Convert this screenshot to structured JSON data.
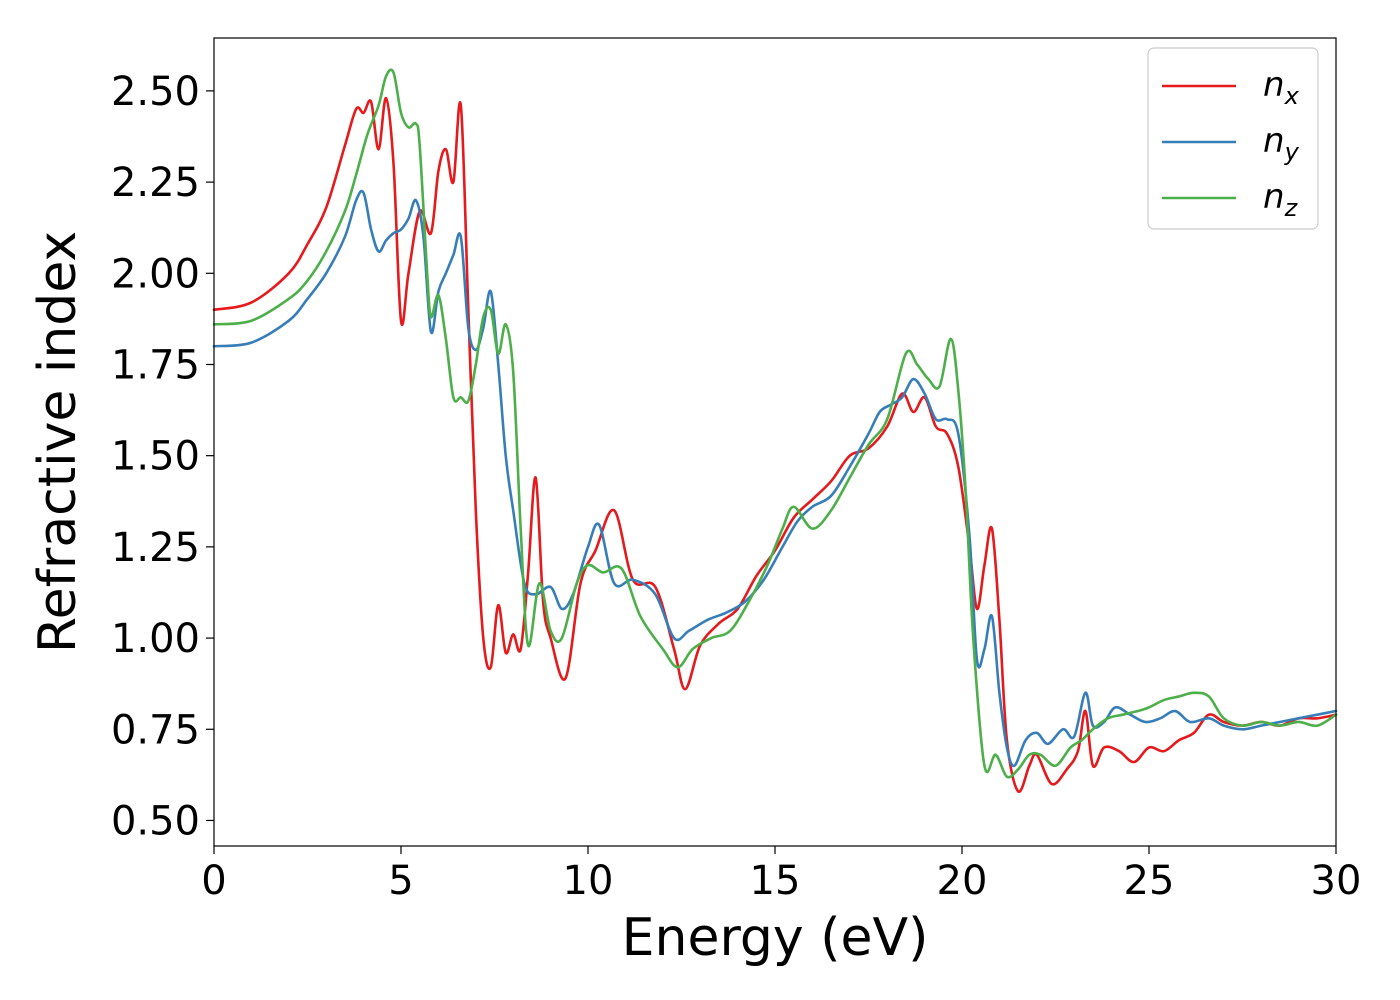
{
  "chart_data": {
    "type": "line",
    "xlabel": "Energy (eV)",
    "ylabel": "Refractive index",
    "xlim": [
      0,
      30
    ],
    "ylim": [
      0.43,
      2.645
    ],
    "xticks": [
      0,
      5,
      10,
      15,
      20,
      25,
      30
    ],
    "xtick_labels": [
      "0",
      "5",
      "10",
      "15",
      "20",
      "25",
      "30"
    ],
    "yticks": [
      0.5,
      0.75,
      1.0,
      1.25,
      1.5,
      1.75,
      2.0,
      2.25,
      2.5
    ],
    "ytick_labels": [
      "0.50",
      "0.75",
      "1.00",
      "1.25",
      "1.50",
      "1.75",
      "2.00",
      "2.25",
      "2.50"
    ],
    "grid": false,
    "legend_position": "top-right",
    "series": [
      {
        "name": "n_x",
        "label_main": "n",
        "label_sub": "x",
        "color": "#e41a1c",
        "x": [
          0,
          1,
          2,
          2.5,
          3,
          3.5,
          3.8,
          4.0,
          4.2,
          4.4,
          4.6,
          4.8,
          5.0,
          5.2,
          5.5,
          5.8,
          6.0,
          6.2,
          6.4,
          6.6,
          6.8,
          7.0,
          7.2,
          7.4,
          7.6,
          7.8,
          8.0,
          8.2,
          8.4,
          8.6,
          8.8,
          9.0,
          9.4,
          9.8,
          10.2,
          10.7,
          11.2,
          11.8,
          12.3,
          12.6,
          13.0,
          13.5,
          14.0,
          14.5,
          15.0,
          15.5,
          16.0,
          16.5,
          17.0,
          17.5,
          18.0,
          18.4,
          18.7,
          19.0,
          19.3,
          19.6,
          19.9,
          20.2,
          20.4,
          20.6,
          20.8,
          21.0,
          21.2,
          21.5,
          21.8,
          22.0,
          22.4,
          22.8,
          23.1,
          23.3,
          23.5,
          23.8,
          24.2,
          24.6,
          25.0,
          25.4,
          25.8,
          26.2,
          26.6,
          27.0,
          27.5,
          28.0,
          28.5,
          29.0,
          29.5,
          30.0
        ],
        "values": [
          1.9,
          1.92,
          2.0,
          2.08,
          2.18,
          2.35,
          2.45,
          2.44,
          2.47,
          2.34,
          2.48,
          2.3,
          1.87,
          2.0,
          2.17,
          2.11,
          2.28,
          2.34,
          2.25,
          2.46,
          1.9,
          1.35,
          1.0,
          0.92,
          1.09,
          0.96,
          1.01,
          0.97,
          1.18,
          1.44,
          1.1,
          1.0,
          0.89,
          1.15,
          1.24,
          1.35,
          1.16,
          1.14,
          0.97,
          0.86,
          0.98,
          1.04,
          1.08,
          1.17,
          1.24,
          1.33,
          1.38,
          1.43,
          1.5,
          1.52,
          1.58,
          1.67,
          1.62,
          1.66,
          1.58,
          1.56,
          1.47,
          1.25,
          1.08,
          1.2,
          1.3,
          1.05,
          0.72,
          0.58,
          0.65,
          0.68,
          0.6,
          0.64,
          0.69,
          0.8,
          0.65,
          0.7,
          0.69,
          0.66,
          0.7,
          0.69,
          0.72,
          0.74,
          0.79,
          0.77,
          0.76,
          0.77,
          0.76,
          0.78,
          0.78,
          0.79
        ]
      },
      {
        "name": "n_y",
        "label_main": "n",
        "label_sub": "y",
        "color": "#377eb8",
        "x": [
          0,
          1,
          2,
          2.5,
          3,
          3.5,
          3.8,
          4.0,
          4.2,
          4.4,
          4.6,
          4.8,
          5.0,
          5.2,
          5.4,
          5.6,
          5.8,
          6.0,
          6.2,
          6.4,
          6.6,
          6.8,
          7.0,
          7.2,
          7.4,
          7.6,
          7.8,
          8.0,
          8.3,
          8.6,
          9.0,
          9.3,
          9.6,
          10.0,
          10.3,
          10.7,
          11.2,
          11.8,
          12.3,
          12.7,
          13.2,
          13.7,
          14.2,
          14.7,
          15.2,
          15.6,
          16.0,
          16.5,
          17.0,
          17.5,
          17.8,
          18.1,
          18.4,
          18.7,
          19.0,
          19.3,
          19.6,
          19.9,
          20.2,
          20.4,
          20.6,
          20.8,
          21.0,
          21.2,
          21.4,
          21.7,
          22.0,
          22.3,
          22.7,
          23.0,
          23.3,
          23.5,
          23.8,
          24.1,
          24.5,
          24.9,
          25.3,
          25.7,
          26.1,
          26.6,
          27.0,
          27.5,
          28.0,
          28.5,
          29.0,
          29.5,
          30.0
        ],
        "values": [
          1.8,
          1.81,
          1.87,
          1.93,
          2.0,
          2.1,
          2.2,
          2.22,
          2.12,
          2.06,
          2.09,
          2.11,
          2.12,
          2.15,
          2.2,
          2.1,
          1.84,
          1.95,
          2.0,
          2.05,
          2.1,
          1.85,
          1.79,
          1.85,
          1.95,
          1.75,
          1.5,
          1.35,
          1.15,
          1.12,
          1.14,
          1.08,
          1.12,
          1.25,
          1.31,
          1.15,
          1.16,
          1.12,
          1.0,
          1.02,
          1.05,
          1.07,
          1.1,
          1.16,
          1.25,
          1.32,
          1.36,
          1.39,
          1.47,
          1.56,
          1.62,
          1.64,
          1.66,
          1.71,
          1.67,
          1.6,
          1.6,
          1.56,
          1.28,
          0.94,
          0.97,
          1.06,
          0.85,
          0.7,
          0.65,
          0.72,
          0.74,
          0.71,
          0.75,
          0.73,
          0.85,
          0.76,
          0.77,
          0.81,
          0.79,
          0.77,
          0.78,
          0.8,
          0.77,
          0.78,
          0.76,
          0.75,
          0.76,
          0.77,
          0.78,
          0.79,
          0.8
        ]
      },
      {
        "name": "n_z",
        "label_main": "n",
        "label_sub": "z",
        "color": "#4daf4a",
        "x": [
          0,
          1,
          2,
          2.5,
          3,
          3.5,
          3.8,
          4.1,
          4.4,
          4.6,
          4.8,
          5.0,
          5.2,
          5.4,
          5.5,
          5.7,
          5.8,
          6.0,
          6.2,
          6.4,
          6.6,
          6.8,
          7.0,
          7.2,
          7.4,
          7.6,
          7.8,
          8.0,
          8.2,
          8.4,
          8.7,
          9.0,
          9.3,
          9.7,
          10.0,
          10.4,
          10.9,
          11.4,
          12.0,
          12.4,
          12.8,
          13.3,
          13.8,
          14.3,
          14.8,
          15.2,
          15.5,
          16.0,
          16.5,
          17.0,
          17.5,
          18.0,
          18.5,
          18.8,
          19.1,
          19.4,
          19.7,
          19.9,
          20.1,
          20.3,
          20.6,
          20.9,
          21.2,
          21.5,
          21.8,
          22.1,
          22.5,
          22.9,
          23.2,
          23.5,
          23.9,
          24.3,
          24.7,
          25.0,
          25.4,
          25.8,
          26.2,
          26.6,
          27.0,
          27.5,
          28.0,
          28.5,
          29.0,
          29.5,
          30.0
        ],
        "values": [
          1.86,
          1.87,
          1.93,
          1.98,
          2.06,
          2.17,
          2.27,
          2.38,
          2.46,
          2.54,
          2.55,
          2.44,
          2.4,
          2.41,
          2.35,
          2.0,
          1.88,
          1.94,
          1.82,
          1.66,
          1.66,
          1.65,
          1.75,
          1.88,
          1.9,
          1.78,
          1.86,
          1.73,
          1.3,
          0.98,
          1.15,
          1.02,
          1.0,
          1.15,
          1.2,
          1.18,
          1.19,
          1.06,
          0.97,
          0.92,
          0.97,
          1.0,
          1.02,
          1.1,
          1.2,
          1.3,
          1.36,
          1.3,
          1.35,
          1.44,
          1.53,
          1.6,
          1.78,
          1.75,
          1.71,
          1.69,
          1.82,
          1.68,
          1.4,
          1.0,
          0.65,
          0.68,
          0.62,
          0.64,
          0.68,
          0.68,
          0.65,
          0.7,
          0.72,
          0.75,
          0.78,
          0.79,
          0.8,
          0.81,
          0.83,
          0.84,
          0.85,
          0.84,
          0.78,
          0.76,
          0.77,
          0.76,
          0.77,
          0.76,
          0.79
        ]
      }
    ]
  }
}
